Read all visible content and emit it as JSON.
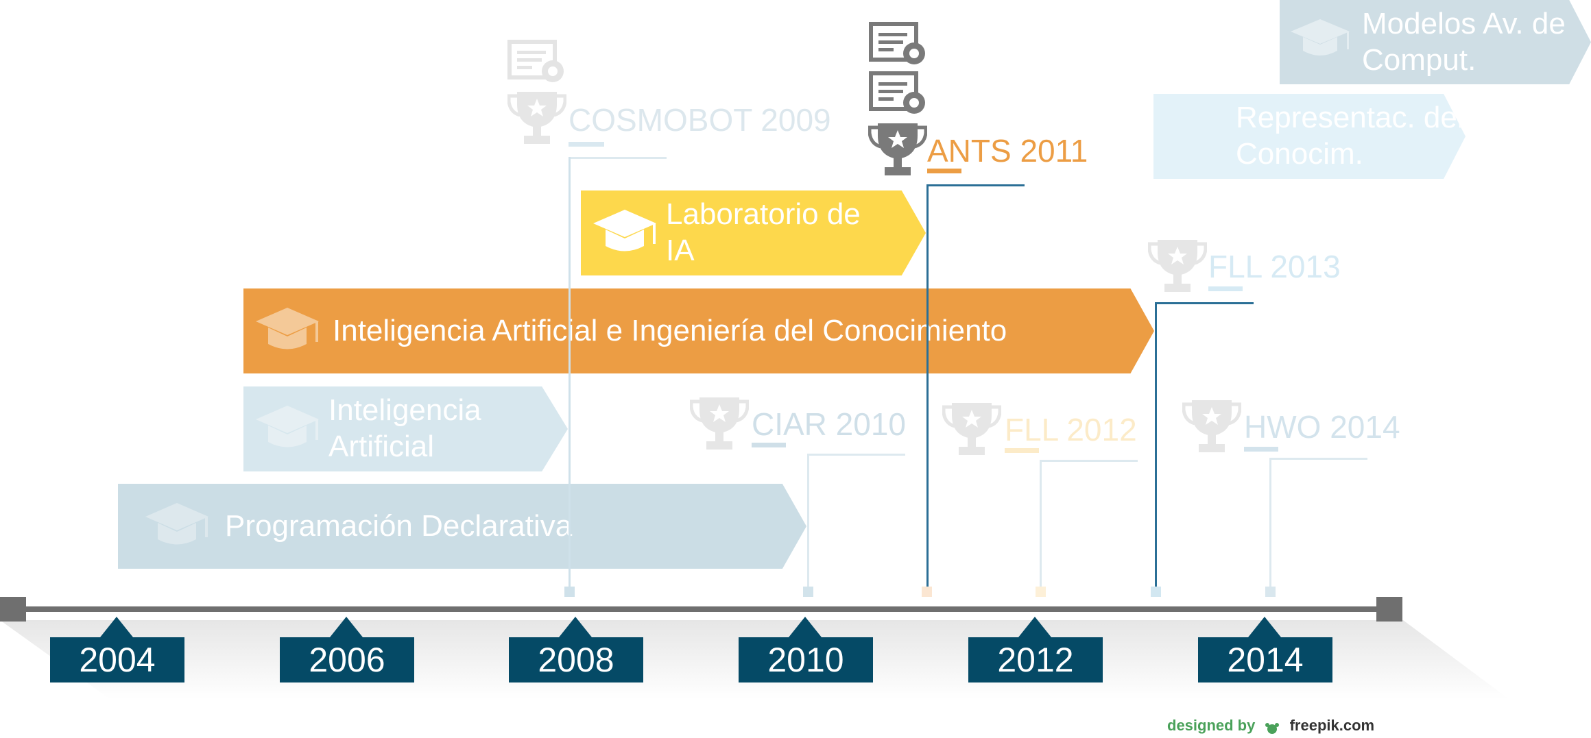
{
  "colors": {
    "orange": "#ec9d44",
    "yellow": "#fdd84c",
    "navy": "#054a66",
    "axis_gray": "#6f6f6f",
    "faded_blue": "#cbdde5",
    "faded_light_blue": "#e3f2f9",
    "line_blue": "#2b6f96",
    "award_gray": "#7a7a7a"
  },
  "courses": [
    {
      "label": "Modelos Av. de Comput.",
      "state": "faded",
      "icon": "graduation-cap-icon"
    },
    {
      "label": "Representac. del Conocim.",
      "state": "faded"
    },
    {
      "label": "Laboratorio de IA",
      "state": "highlight-yellow",
      "icon": "graduation-cap-icon"
    },
    {
      "label": "Inteligencia Artificial e Ingeniería del Conocimiento",
      "state": "highlight-orange",
      "icon": "graduation-cap-icon"
    },
    {
      "label": "Inteligencia Artificial",
      "state": "faded",
      "icon": "graduation-cap-icon"
    },
    {
      "label": "Programación Declarativa",
      "state": "faded",
      "icon": "graduation-cap-icon"
    }
  ],
  "events": [
    {
      "label": "COSMOBOT 2009",
      "state": "faded",
      "icons": [
        "certificate-icon",
        "trophy-icon"
      ]
    },
    {
      "label": "ANTS 2011",
      "state": "highlight",
      "icons": [
        "certificate-icon",
        "certificate-icon",
        "trophy-icon"
      ]
    },
    {
      "label": "FLL 2013",
      "state": "faded",
      "icons": [
        "trophy-icon"
      ]
    },
    {
      "label": "CIAR 2010",
      "state": "faded",
      "icons": [
        "trophy-icon"
      ]
    },
    {
      "label": "FLL 2012",
      "state": "faded",
      "icons": [
        "trophy-icon"
      ]
    },
    {
      "label": "HWO 2014",
      "state": "faded",
      "icons": [
        "trophy-icon"
      ]
    }
  ],
  "years": [
    "2004",
    "2006",
    "2008",
    "2010",
    "2012",
    "2014"
  ],
  "credit": {
    "prefix": "designed by",
    "brand": "freepik.com"
  }
}
